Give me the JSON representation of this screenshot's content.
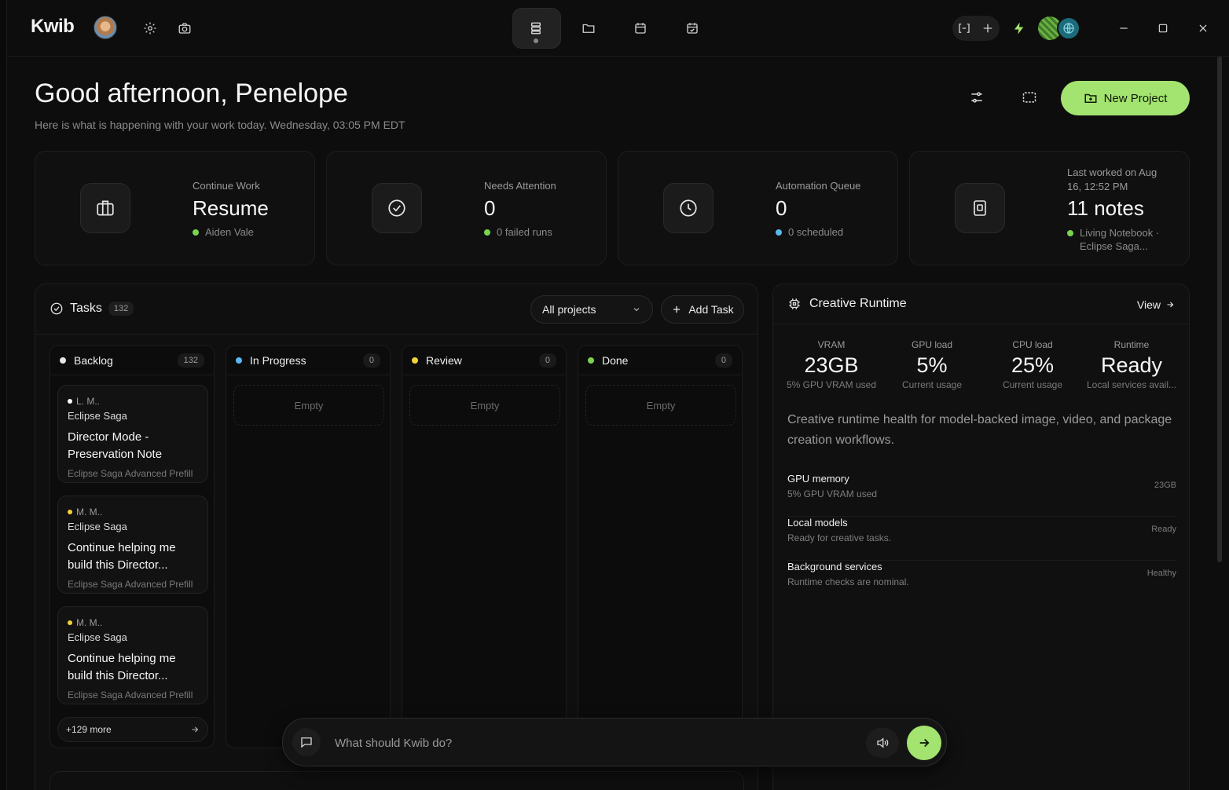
{
  "app": {
    "logo": "Kwib"
  },
  "header": {
    "greeting": "Good afternoon, Penelope",
    "subline": "Here is what is happening with your work today. Wednesday, 03:05 PM EDT",
    "new_project_label": "New Project"
  },
  "stats": [
    {
      "label": "Continue Work",
      "value": "Resume",
      "sub": "Aiden Vale",
      "dot_color": "#7bd34f",
      "icon": "briefcase-icon"
    },
    {
      "label": "Needs Attention",
      "value": "0",
      "sub": "0 failed runs",
      "dot_color": "#7bd34f",
      "icon": "check-circle-icon"
    },
    {
      "label": "Automation Queue",
      "value": "0",
      "sub": "0 scheduled",
      "dot_color": "#5ab8f0",
      "icon": "clock-icon"
    },
    {
      "label": "Last worked on Aug 16, 12:52 PM",
      "value": "11 notes",
      "sub": "Living Notebook · Eclipse Saga...",
      "dot_color": "#7bd34f",
      "icon": "notebook-icon"
    }
  ],
  "tasks": {
    "title": "Tasks",
    "count": "132",
    "filter_value": "All projects",
    "add_task_label": "Add Task",
    "columns": [
      {
        "name": "Backlog",
        "count": "132",
        "dot_color": "#e6e6e6"
      },
      {
        "name": "In Progress",
        "count": "0",
        "dot_color": "#5ab8f0",
        "empty": "Empty"
      },
      {
        "name": "Review",
        "count": "0",
        "dot_color": "#f2d23a",
        "empty": "Empty"
      },
      {
        "name": "Done",
        "count": "0",
        "dot_color": "#7bd34f",
        "empty": "Empty"
      }
    ],
    "cards": [
      {
        "meta": "L.  M..",
        "dot_color": "#ffffff",
        "project": "Eclipse Saga",
        "title": "Director Mode - Preservation Note",
        "sub": "Eclipse Saga Advanced Prefill"
      },
      {
        "meta": "M.  M..",
        "dot_color": "#f2d23a",
        "project": "Eclipse Saga",
        "title": "Continue helping me build this Director...",
        "sub": "Eclipse Saga Advanced Prefill"
      },
      {
        "meta": "M.  M..",
        "dot_color": "#f2d23a",
        "project": "Eclipse Saga",
        "title": "Continue helping me build this Director...",
        "sub": "Eclipse Saga Advanced Prefill"
      }
    ],
    "more_label": "+129 more"
  },
  "runtime": {
    "title": "Creative Runtime",
    "view_label": "View",
    "metrics": [
      {
        "label": "VRAM",
        "value": "23GB",
        "sub": "5% GPU VRAM used"
      },
      {
        "label": "GPU load",
        "value": "5%",
        "sub": "Current usage"
      },
      {
        "label": "CPU load",
        "value": "25%",
        "sub": "Current usage"
      },
      {
        "label": "Runtime",
        "value": "Ready",
        "sub": "Local services avail..."
      }
    ],
    "description": "Creative runtime health for model-backed image, video, and package creation workflows.",
    "rows": [
      {
        "title": "GPU memory",
        "sub": "5% GPU VRAM used",
        "value": "23GB"
      },
      {
        "title": "Local models",
        "sub": "Ready for creative tasks.",
        "value": "Ready"
      },
      {
        "title": "Background services",
        "sub": "Runtime checks are nominal.",
        "value": "Healthy"
      }
    ]
  },
  "command_bar": {
    "placeholder": "What should Kwib do?"
  },
  "colors": {
    "accent": "#a3e36f",
    "background": "#0d0d0d"
  }
}
